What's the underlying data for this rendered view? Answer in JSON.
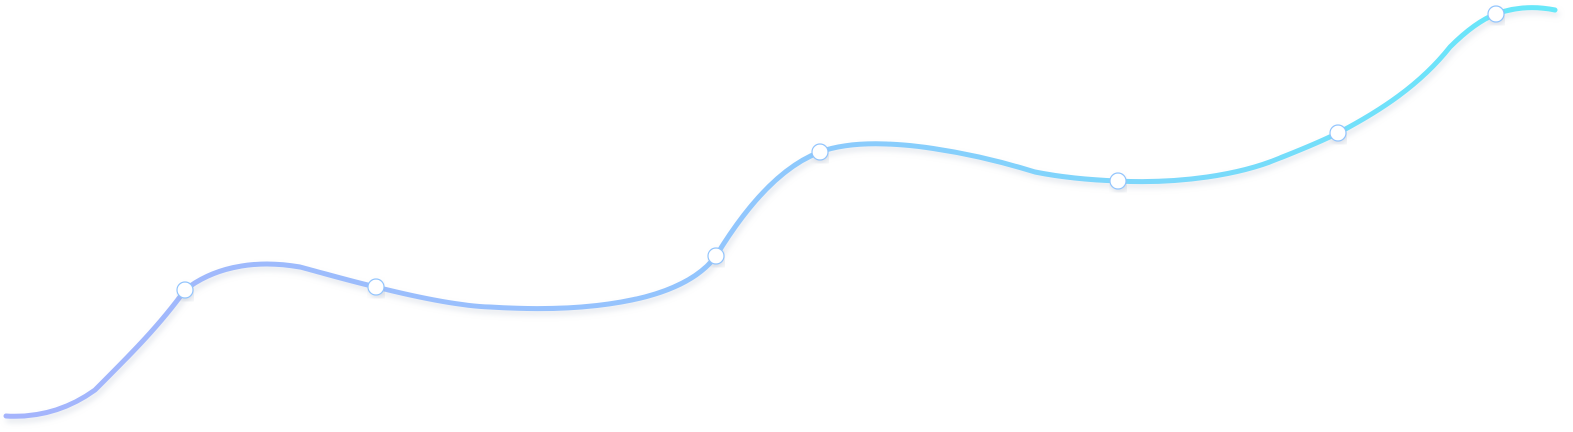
{
  "curve": {
    "gradient_start": "#a5b4fc",
    "gradient_mid": "#93c5fd",
    "gradient_end": "#67e8f9",
    "shadow_color": "#94a3b8"
  },
  "markers": {
    "count": 7,
    "fill": "#ffffff",
    "stroke": "#93c5fd"
  }
}
